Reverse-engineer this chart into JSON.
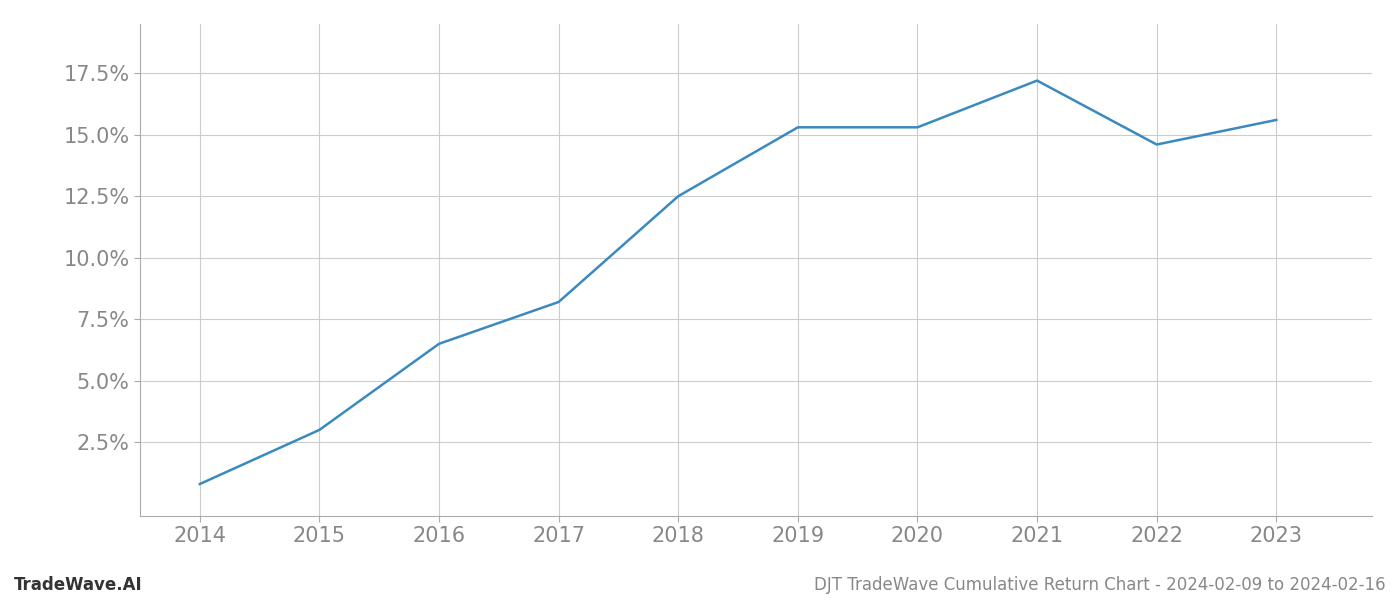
{
  "x": [
    2014,
    2015,
    2016,
    2017,
    2018,
    2019,
    2020,
    2021,
    2022,
    2023
  ],
  "y": [
    0.008,
    0.03,
    0.065,
    0.082,
    0.125,
    0.153,
    0.153,
    0.172,
    0.146,
    0.156
  ],
  "line_color": "#3a8abf",
  "line_width": 1.8,
  "background_color": "#ffffff",
  "grid_color": "#cccccc",
  "tick_color": "#999999",
  "label_color": "#888888",
  "yticks": [
    0.025,
    0.05,
    0.075,
    0.1,
    0.125,
    0.15,
    0.175
  ],
  "xticks": [
    2014,
    2015,
    2016,
    2017,
    2018,
    2019,
    2020,
    2021,
    2022,
    2023
  ],
  "ylim": [
    -0.005,
    0.195
  ],
  "xlim": [
    2013.5,
    2023.8
  ],
  "footer_left": "TradeWave.AI",
  "footer_right": "DJT TradeWave Cumulative Return Chart - 2024-02-09 to 2024-02-16",
  "footer_fontsize": 12,
  "tick_fontsize": 15,
  "spine_color": "#aaaaaa"
}
